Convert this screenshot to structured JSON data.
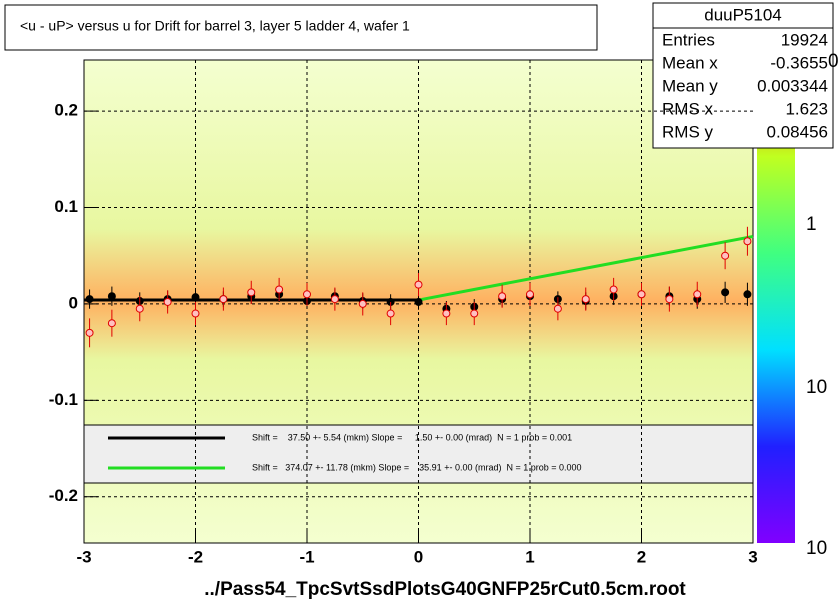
{
  "chart_data": {
    "type": "profile",
    "title": "<u - uP>       versus   u for Drift for barrel 3, layer 5 ladder 4, wafer 1",
    "x_label": "../Pass54_TpcSvtSsdPlotsG40GNFP25rCut0.5cm.root",
    "xlim": [
      -3,
      3
    ],
    "ylim": [
      -0.248,
      0.253
    ],
    "xticks": [
      -3,
      -2,
      -1,
      0,
      1,
      2,
      3
    ],
    "yticks": [
      -0.2,
      -0.1,
      0,
      0.1,
      0.2
    ],
    "grid": true,
    "series": [
      {
        "color": "#000000",
        "x": [
          -2.95,
          -2.75,
          -2.5,
          -2.25,
          -2,
          -1.75,
          -1.5,
          -1.25,
          -1,
          -0.75,
          -0.5,
          -0.25,
          0,
          0.25,
          0.5,
          0.75,
          1,
          1.25,
          1.5,
          1.75,
          2,
          2.25,
          2.5,
          2.75,
          2.95
        ],
        "values": [
          0.005,
          0.008,
          0.003,
          0.005,
          0.007,
          0.005,
          0.008,
          0.01,
          0.003,
          0.008,
          0.003,
          0.002,
          0.002,
          -0.005,
          -0.003,
          0.005,
          0.008,
          0.005,
          0.003,
          0.008,
          0.01,
          0.008,
          0.005,
          0.012,
          0.01
        ],
        "errors": [
          0.01,
          0.01,
          0.009,
          0.009,
          0.009,
          0.008,
          0.008,
          0.008,
          0.008,
          0.008,
          0.008,
          0.008,
          0.008,
          0.008,
          0.008,
          0.008,
          0.008,
          0.008,
          0.009,
          0.009,
          0.009,
          0.01,
          0.01,
          0.011,
          0.012
        ]
      },
      {
        "color": "#e00000",
        "x": [
          -2.95,
          -2.75,
          -2.5,
          -2.25,
          -2,
          -1.75,
          -1.5,
          -1.25,
          -1,
          -0.75,
          -0.5,
          -0.25,
          0,
          0.25,
          0.5,
          0.75,
          1,
          1.25,
          1.5,
          1.75,
          2,
          2.25,
          2.5,
          2.75,
          2.95
        ],
        "values": [
          -0.03,
          -0.02,
          -0.005,
          0.002,
          -0.01,
          0.005,
          0.012,
          0.015,
          0.01,
          0.005,
          0,
          -0.01,
          0.02,
          -0.01,
          -0.01,
          0.008,
          0.01,
          -0.005,
          0.005,
          0.015,
          0.01,
          0.005,
          0.01,
          0.05,
          0.065
        ],
        "errors": [
          0.015,
          0.014,
          0.013,
          0.012,
          0.012,
          0.012,
          0.012,
          0.012,
          0.012,
          0.012,
          0.012,
          0.012,
          0.012,
          0.012,
          0.012,
          0.012,
          0.012,
          0.012,
          0.012,
          0.012,
          0.012,
          0.013,
          0.013,
          0.014,
          0.015
        ]
      }
    ],
    "fits": [
      {
        "name": "Shift =    37.50 +- 5.54 (mkm) Slope =     1.50 +- 0.00 (mrad)  N = 1 prob = 0.001",
        "color": "#000000",
        "x": [
          -3,
          0
        ],
        "values": [
          0.004,
          0.004
        ]
      },
      {
        "name": "Shift =   374.07 +- 11.78 (mkm) Slope =    35.91 +- 0.00 (mrad)  N = 1 prob = 0.000",
        "color": "#22dd22",
        "x": [
          0,
          3
        ],
        "values": [
          0.004,
          0.07
        ]
      }
    ],
    "stats": {
      "name": "duuP5104",
      "rows": [
        [
          "Entries",
          "19924"
        ],
        [
          "Mean x",
          "-0.3655"
        ],
        [
          "Mean y",
          "0.003344"
        ],
        [
          "RMS x",
          "1.623"
        ],
        [
          "RMS y",
          "0.08456"
        ]
      ]
    },
    "colorbar_labels": [
      "0",
      "1",
      "10",
      "10"
    ]
  }
}
